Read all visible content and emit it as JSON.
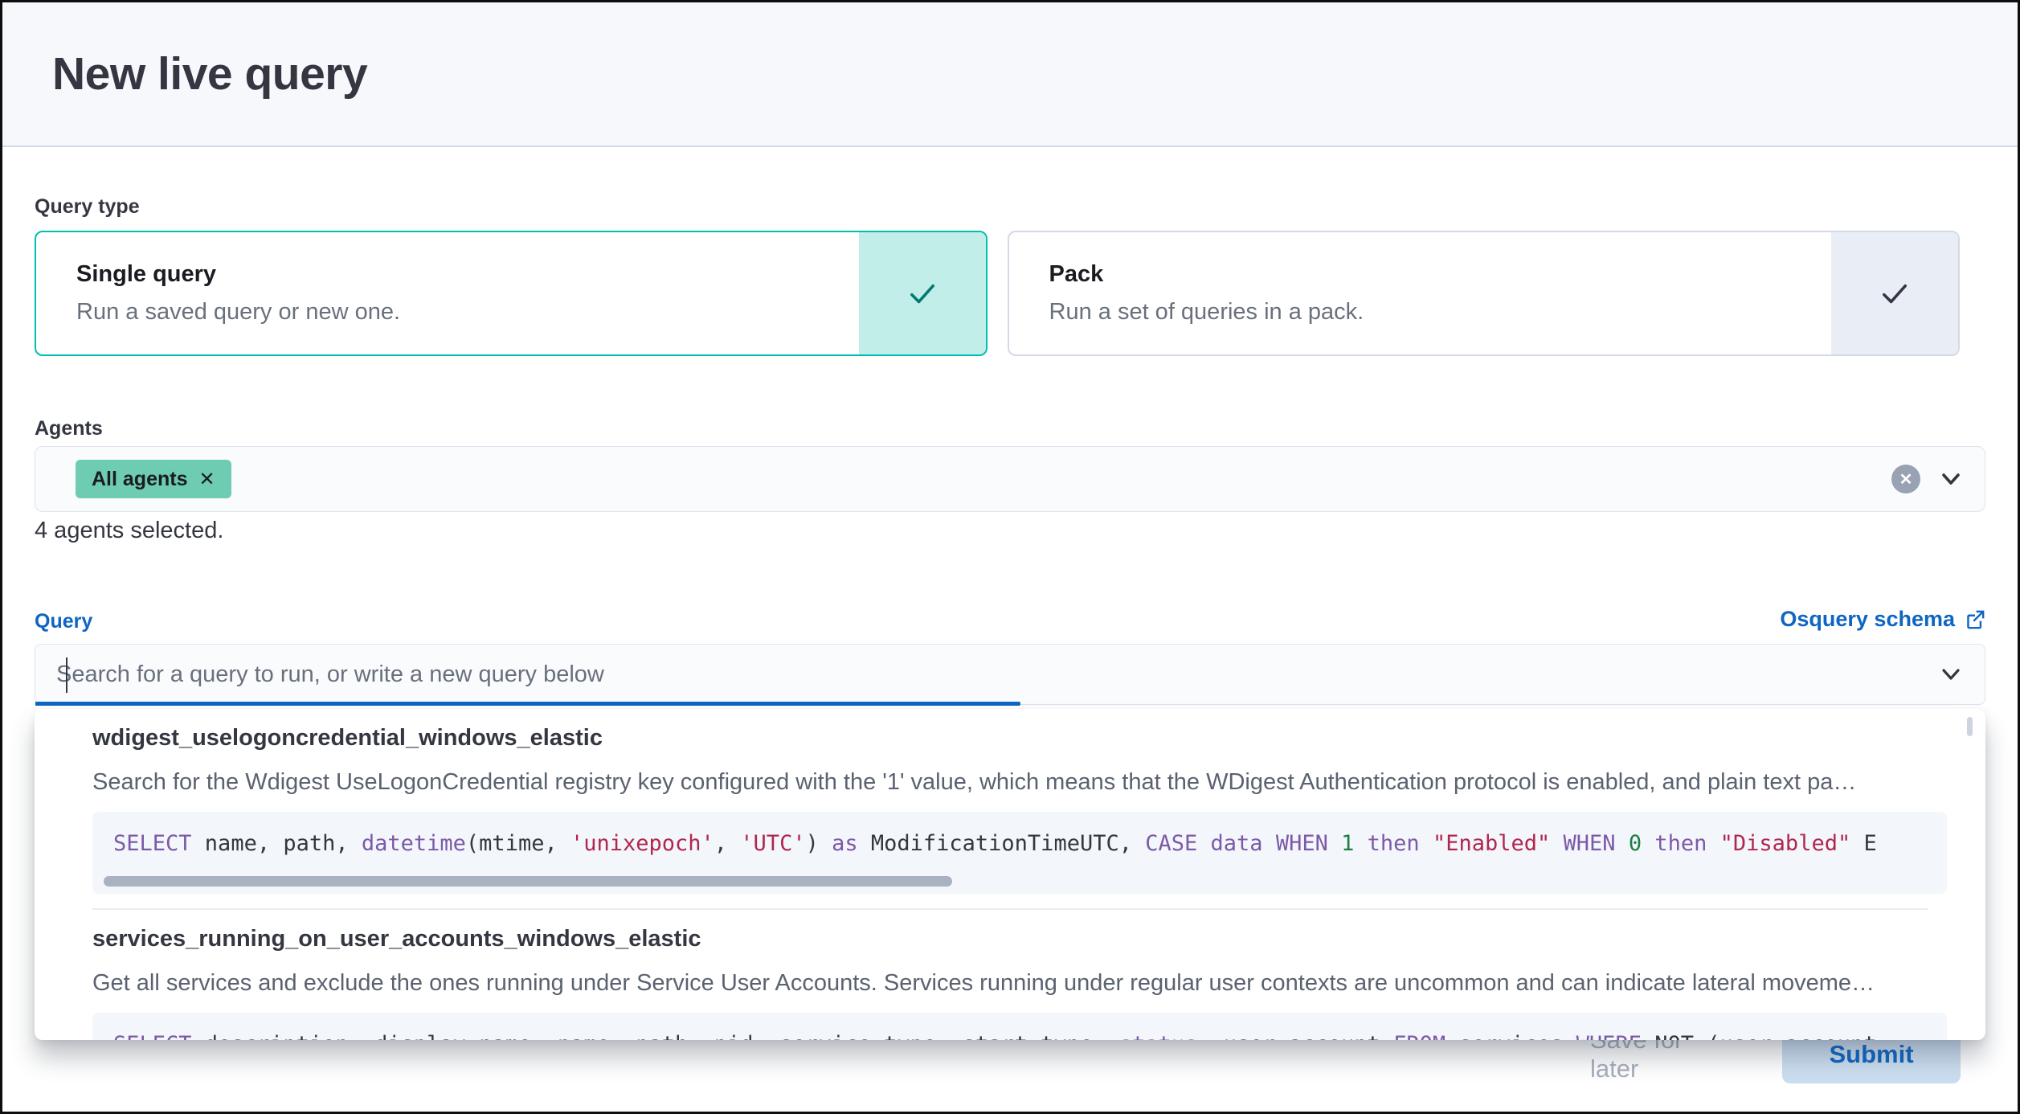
{
  "page": {
    "title": "New live query"
  },
  "query_type": {
    "label": "Query type",
    "options": [
      {
        "title": "Single query",
        "description": "Run a saved query or new one.",
        "selected": true
      },
      {
        "title": "Pack",
        "description": "Run a set of queries in a pack.",
        "selected": false
      }
    ]
  },
  "agents": {
    "label": "Agents",
    "selected_badge": "All agents",
    "summary": "4 agents selected."
  },
  "query": {
    "label": "Query",
    "schema_link": "Osquery schema",
    "input_placeholder": "Search for a query to run, or write a new query below",
    "suggestions": [
      {
        "title": "wdigest_uselogoncredential_windows_elastic",
        "description": "Search for the Wdigest UseLogonCredential registry key configured with the '1' value, which means that the WDigest Authentication protocol is enabled, and plain text pa…",
        "sql_tokens": [
          {
            "t": "SELECT",
            "c": "kw"
          },
          {
            "t": " name, path, ",
            "c": "def"
          },
          {
            "t": "datetime",
            "c": "kw"
          },
          {
            "t": "(mtime, ",
            "c": "def"
          },
          {
            "t": "'unixepoch'",
            "c": "str"
          },
          {
            "t": ", ",
            "c": "def"
          },
          {
            "t": "'UTC'",
            "c": "str"
          },
          {
            "t": ") ",
            "c": "def"
          },
          {
            "t": "as",
            "c": "kw"
          },
          {
            "t": " ModificationTimeUTC, ",
            "c": "def"
          },
          {
            "t": "CASE",
            "c": "kw"
          },
          {
            "t": " ",
            "c": "def"
          },
          {
            "t": "data",
            "c": "kw"
          },
          {
            "t": " ",
            "c": "def"
          },
          {
            "t": "WHEN",
            "c": "kw"
          },
          {
            "t": " ",
            "c": "def"
          },
          {
            "t": "1",
            "c": "num"
          },
          {
            "t": " ",
            "c": "def"
          },
          {
            "t": "then",
            "c": "kw"
          },
          {
            "t": " ",
            "c": "def"
          },
          {
            "t": "\"Enabled\"",
            "c": "str"
          },
          {
            "t": " ",
            "c": "def"
          },
          {
            "t": "WHEN",
            "c": "kw"
          },
          {
            "t": " ",
            "c": "def"
          },
          {
            "t": "0",
            "c": "num"
          },
          {
            "t": " ",
            "c": "def"
          },
          {
            "t": "then",
            "c": "kw"
          },
          {
            "t": " ",
            "c": "def"
          },
          {
            "t": "\"Disabled\"",
            "c": "str"
          },
          {
            "t": " E",
            "c": "def"
          }
        ]
      },
      {
        "title": "services_running_on_user_accounts_windows_elastic",
        "description": "Get all services and exclude the ones running under Service User Accounts. Services running under regular user contexts are uncommon and can indicate lateral moveme…",
        "sql_tokens": [
          {
            "t": "SELECT",
            "c": "kw"
          },
          {
            "t": " description, display_name, name, path, pid, service_type, start_type, ",
            "c": "def"
          },
          {
            "t": "status",
            "c": "kw"
          },
          {
            "t": ", user_account ",
            "c": "def"
          },
          {
            "t": "FROM",
            "c": "kw"
          },
          {
            "t": " services ",
            "c": "def"
          },
          {
            "t": "WHERE",
            "c": "kw"
          },
          {
            "t": " NOT (user_account",
            "c": "def"
          }
        ]
      }
    ]
  },
  "footer": {
    "save_label": "Save for later",
    "submit_label": "Submit"
  },
  "icons": {
    "badge_remove": "✕",
    "clear": "✕"
  },
  "colors": {
    "accent_teal": "#00beb2",
    "teal_fill": "#c2eee9",
    "badge_green": "#6dccb1",
    "primary_blue": "#0e65c2",
    "submit_bg": "#cbdef0",
    "code_keyword": "#7c5aa8",
    "code_string": "#b2264e",
    "code_number": "#1e7d45"
  }
}
